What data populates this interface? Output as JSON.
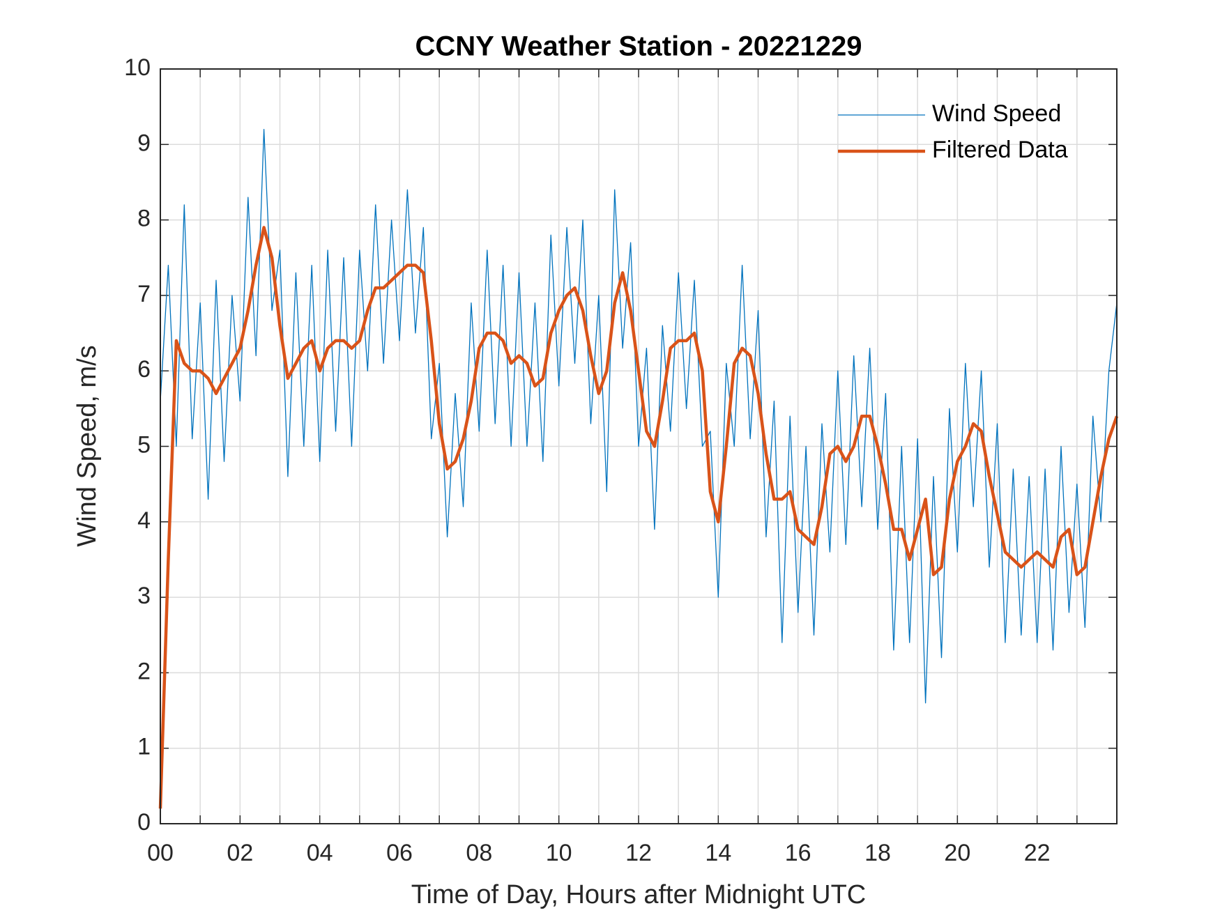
{
  "chart_data": {
    "type": "line",
    "title": "CCNY Weather Station - 20221229",
    "x_label": "Time of Day, Hours after Midnight UTC",
    "y_label": "Wind Speed, m/s",
    "xlim": [
      0,
      24
    ],
    "ylim": [
      0,
      10
    ],
    "xticks": [
      {
        "value": 0,
        "label": "00"
      },
      {
        "value": 2,
        "label": "02"
      },
      {
        "value": 4,
        "label": "04"
      },
      {
        "value": 6,
        "label": "06"
      },
      {
        "value": 8,
        "label": "08"
      },
      {
        "value": 10,
        "label": "10"
      },
      {
        "value": 12,
        "label": "12"
      },
      {
        "value": 14,
        "label": "14"
      },
      {
        "value": 16,
        "label": "16"
      },
      {
        "value": 18,
        "label": "18"
      },
      {
        "value": 20,
        "label": "20"
      },
      {
        "value": 22,
        "label": "22"
      }
    ],
    "xminorticks": [
      1,
      3,
      5,
      7,
      9,
      11,
      13,
      15,
      17,
      19,
      21,
      23
    ],
    "yticks": [
      0,
      1,
      2,
      3,
      4,
      5,
      6,
      7,
      8,
      9,
      10
    ],
    "grid": true,
    "legend": "upper right",
    "x": [
      0,
      0.2,
      0.4,
      0.6,
      0.8,
      1,
      1.2,
      1.4,
      1.6,
      1.8,
      2,
      2.2,
      2.4,
      2.6,
      2.8,
      3,
      3.2,
      3.4,
      3.6,
      3.8,
      4,
      4.2,
      4.4,
      4.6,
      4.8,
      5,
      5.2,
      5.4,
      5.6,
      5.8,
      6,
      6.2,
      6.4,
      6.6,
      6.8,
      7,
      7.2,
      7.4,
      7.6,
      7.8,
      8,
      8.2,
      8.4,
      8.6,
      8.8,
      9,
      9.2,
      9.4,
      9.6,
      9.8,
      10,
      10.2,
      10.4,
      10.6,
      10.8,
      11,
      11.2,
      11.4,
      11.6,
      11.8,
      12,
      12.2,
      12.4,
      12.6,
      12.8,
      13,
      13.2,
      13.4,
      13.6,
      13.8,
      14,
      14.2,
      14.4,
      14.6,
      14.8,
      15,
      15.2,
      15.4,
      15.6,
      15.8,
      16,
      16.2,
      16.4,
      16.6,
      16.8,
      17,
      17.2,
      17.4,
      17.6,
      17.8,
      18,
      18.2,
      18.4,
      18.6,
      18.8,
      19,
      19.2,
      19.4,
      19.6,
      19.8,
      20,
      20.2,
      20.4,
      20.6,
      20.8,
      21,
      21.2,
      21.4,
      21.6,
      21.8,
      22,
      22.2,
      22.4,
      22.6,
      22.8,
      23,
      23.2,
      23.4,
      23.6,
      23.8,
      24
    ],
    "series": [
      {
        "name": "Wind Speed",
        "color": "#0072BD",
        "width": 1.3,
        "values": [
          5.6,
          7.4,
          5.0,
          8.2,
          5.1,
          6.9,
          4.3,
          7.2,
          4.8,
          7.0,
          5.6,
          8.3,
          6.2,
          9.2,
          6.8,
          7.6,
          4.6,
          7.3,
          5.0,
          7.4,
          4.8,
          7.6,
          5.2,
          7.5,
          5.0,
          7.6,
          6.0,
          8.2,
          6.1,
          8.0,
          6.4,
          8.4,
          6.5,
          7.9,
          5.1,
          6.1,
          3.8,
          5.7,
          4.2,
          6.9,
          5.2,
          7.6,
          5.3,
          7.4,
          5.0,
          7.3,
          5.0,
          6.9,
          4.8,
          7.8,
          5.8,
          7.9,
          6.1,
          8.0,
          5.3,
          7.0,
          4.4,
          8.4,
          6.3,
          7.7,
          5.0,
          6.3,
          3.9,
          6.6,
          5.2,
          7.3,
          5.5,
          7.2,
          5.0,
          5.2,
          3.0,
          6.1,
          5.0,
          7.4,
          5.1,
          6.8,
          3.8,
          5.6,
          2.4,
          5.4,
          2.8,
          5.0,
          2.5,
          5.3,
          3.6,
          6.0,
          3.7,
          6.2,
          4.2,
          6.3,
          3.9,
          5.7,
          2.3,
          5.0,
          2.4,
          5.1,
          1.6,
          4.6,
          2.2,
          5.5,
          3.6,
          6.1,
          4.2,
          6.0,
          3.4,
          5.3,
          2.4,
          4.7,
          2.5,
          4.6,
          2.4,
          4.7,
          2.3,
          5.0,
          2.8,
          4.5,
          2.6,
          5.4,
          4.0,
          6.0,
          6.9
        ]
      },
      {
        "name": "Filtered Data",
        "color": "#D95319",
        "width": 4.5,
        "values": [
          0.2,
          3.5,
          6.4,
          6.1,
          6.0,
          6.0,
          5.9,
          5.7,
          5.9,
          6.1,
          6.3,
          6.8,
          7.4,
          7.9,
          7.5,
          6.6,
          5.9,
          6.1,
          6.3,
          6.4,
          6.0,
          6.3,
          6.4,
          6.4,
          6.3,
          6.4,
          6.8,
          7.1,
          7.1,
          7.2,
          7.3,
          7.4,
          7.4,
          7.3,
          6.4,
          5.3,
          4.7,
          4.8,
          5.1,
          5.6,
          6.3,
          6.5,
          6.5,
          6.4,
          6.1,
          6.2,
          6.1,
          5.8,
          5.9,
          6.5,
          6.8,
          7.0,
          7.1,
          6.8,
          6.2,
          5.7,
          6.0,
          6.9,
          7.3,
          6.8,
          6.0,
          5.2,
          5.0,
          5.6,
          6.3,
          6.4,
          6.4,
          6.5,
          6.0,
          4.4,
          4.0,
          5.0,
          6.1,
          6.3,
          6.2,
          5.7,
          4.9,
          4.3,
          4.3,
          4.4,
          3.9,
          3.8,
          3.7,
          4.2,
          4.9,
          5.0,
          4.8,
          5.0,
          5.4,
          5.4,
          5.0,
          4.5,
          3.9,
          3.9,
          3.5,
          3.9,
          4.3,
          3.3,
          3.4,
          4.3,
          4.8,
          5.0,
          5.3,
          5.2,
          4.6,
          4.1,
          3.6,
          3.5,
          3.4,
          3.5,
          3.6,
          3.5,
          3.4,
          3.8,
          3.9,
          3.3,
          3.4,
          4.0,
          4.6,
          5.1,
          5.4
        ]
      }
    ]
  }
}
